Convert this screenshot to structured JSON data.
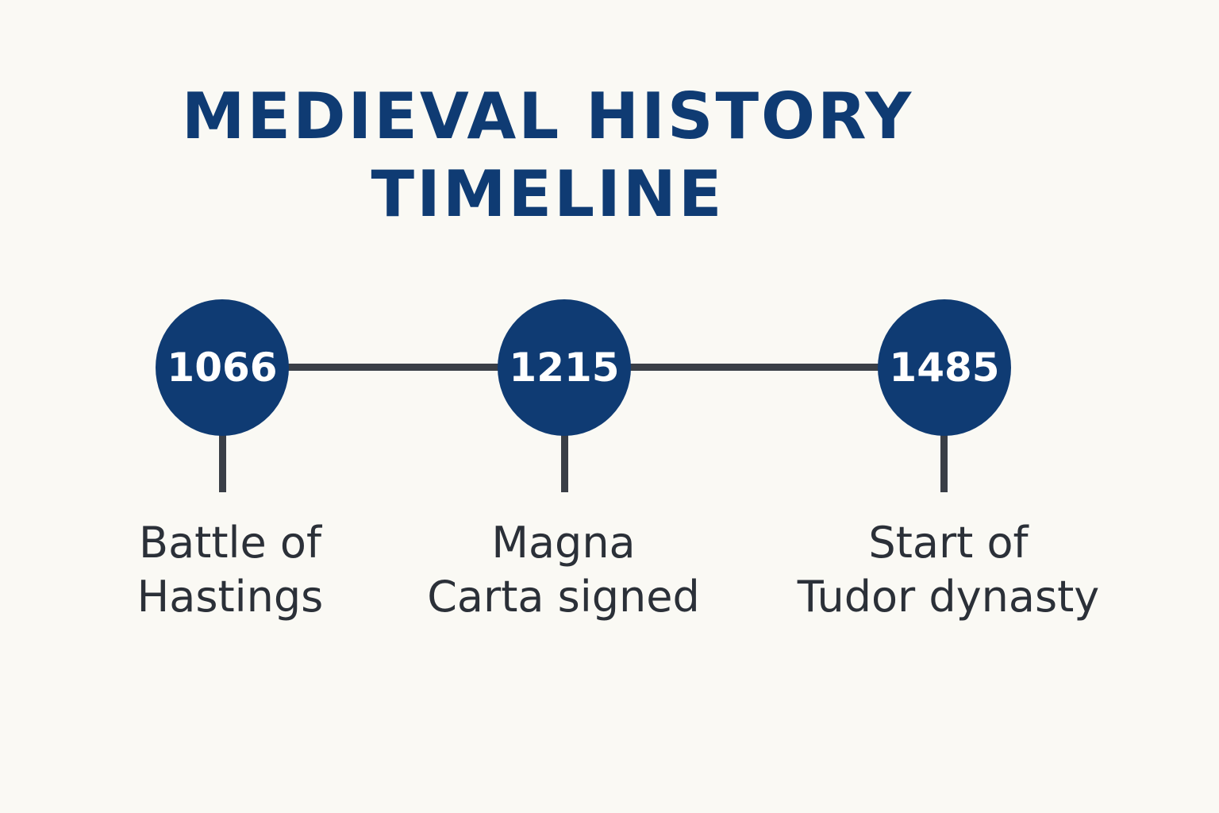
{
  "title": {
    "line1": "MEDIEVAL HISTORY",
    "line2": "TIMELINE"
  },
  "colors": {
    "accent": "#0f3b73",
    "line": "#3a3f47",
    "text": "#2b3038",
    "background": "#faf9f4"
  },
  "events": [
    {
      "year": "1066",
      "label1": "Battle of",
      "label2": "Hastings"
    },
    {
      "year": "1215",
      "label1": "Magna",
      "label2": "Carta signed"
    },
    {
      "year": "1485",
      "label1": "Start of",
      "label2": "Tudor dynasty"
    }
  ]
}
